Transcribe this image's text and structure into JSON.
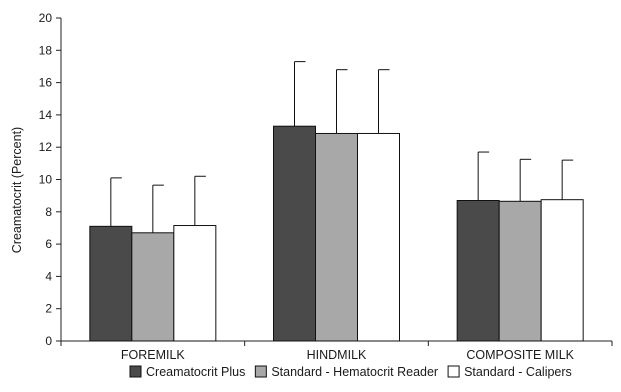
{
  "chart_data": {
    "type": "bar",
    "title": "",
    "xlabel": "",
    "ylabel": "Creamatocrit (Percent)",
    "ylim": [
      0,
      20
    ],
    "yticks": [
      0,
      2,
      4,
      6,
      8,
      10,
      12,
      14,
      16,
      18,
      20
    ],
    "grid": false,
    "legend_position": "bottom",
    "categories": [
      "FOREMILK",
      "HINDMILK",
      "COMPOSITE MILK"
    ],
    "series": [
      {
        "name": "Creamatocrit Plus",
        "color": "#4a4a4a",
        "values": [
          7.1,
          13.3,
          8.7
        ],
        "errors": [
          3.0,
          4.0,
          3.0
        ]
      },
      {
        "name": "Standard - Hematocrit Reader",
        "color": "#a8a8a8",
        "values": [
          6.7,
          12.85,
          8.65
        ],
        "errors": [
          2.95,
          3.95,
          2.6
        ]
      },
      {
        "name": "Standard - Calipers",
        "color": "#ffffff",
        "values": [
          7.15,
          12.85,
          8.75
        ],
        "errors": [
          3.05,
          3.95,
          2.45
        ]
      }
    ]
  }
}
